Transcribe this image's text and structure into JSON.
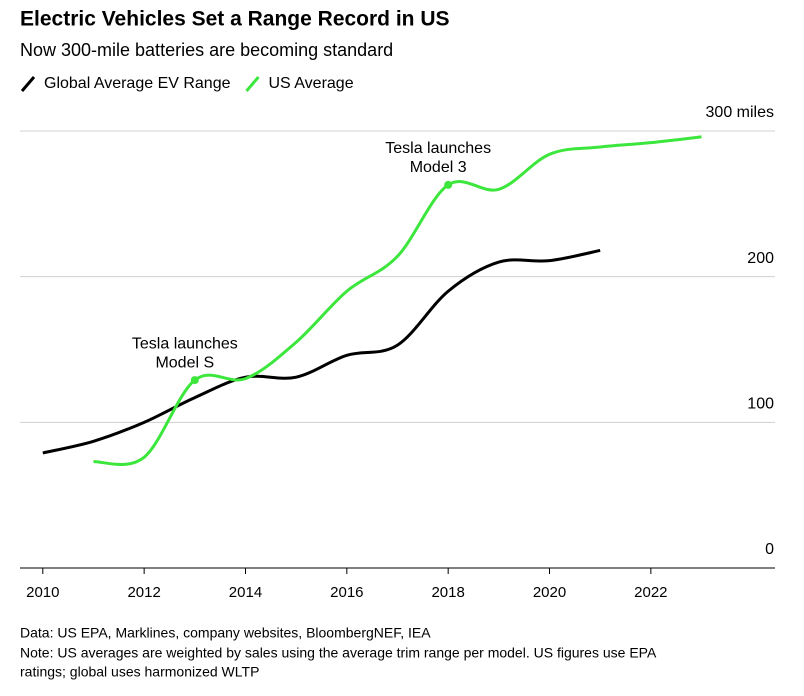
{
  "chart_data": {
    "type": "line",
    "title": "Electric Vehicles Set a Range Record in US",
    "subtitle": "Now 300-mile batteries are becoming standard",
    "series": [
      {
        "name": "Global Average EV Range",
        "color": "#000000",
        "x": [
          2010,
          2011,
          2012,
          2013,
          2014,
          2015,
          2016,
          2017,
          2018,
          2019,
          2020,
          2021
        ],
        "values": [
          79,
          87,
          100,
          117,
          131,
          131,
          146,
          153,
          190,
          210,
          211,
          218
        ]
      },
      {
        "name": "US Average",
        "color": "#3ce63c",
        "x": [
          2011,
          2012,
          2013,
          2014,
          2015,
          2016,
          2017,
          2018,
          2019,
          2020,
          2021,
          2022,
          2023
        ],
        "values": [
          73,
          76,
          129,
          130,
          155,
          190,
          214,
          263,
          260,
          284,
          289,
          292,
          296
        ]
      }
    ],
    "annotations": [
      {
        "lines": [
          "Tesla launches",
          "Model S"
        ],
        "x": 2013
      },
      {
        "lines": [
          "Tesla launches",
          "Model 3"
        ],
        "x": 2018
      }
    ],
    "xlim": [
      2009.55,
      2024.45
    ],
    "xticks": [
      2010,
      2012,
      2014,
      2016,
      2018,
      2020,
      2022
    ],
    "ylim": [
      0,
      300
    ],
    "yticks": [
      0,
      100,
      200,
      {
        "value": 300,
        "label": "300 miles"
      }
    ],
    "grid": true,
    "source": "Data: US EPA, Marklines, company websites, BloombergNEF, IEA",
    "note": [
      "Note: US averages are weighted by sales using the average trim range per model. US figures use EPA",
      "ratings; global uses harmonized WLTP"
    ]
  }
}
